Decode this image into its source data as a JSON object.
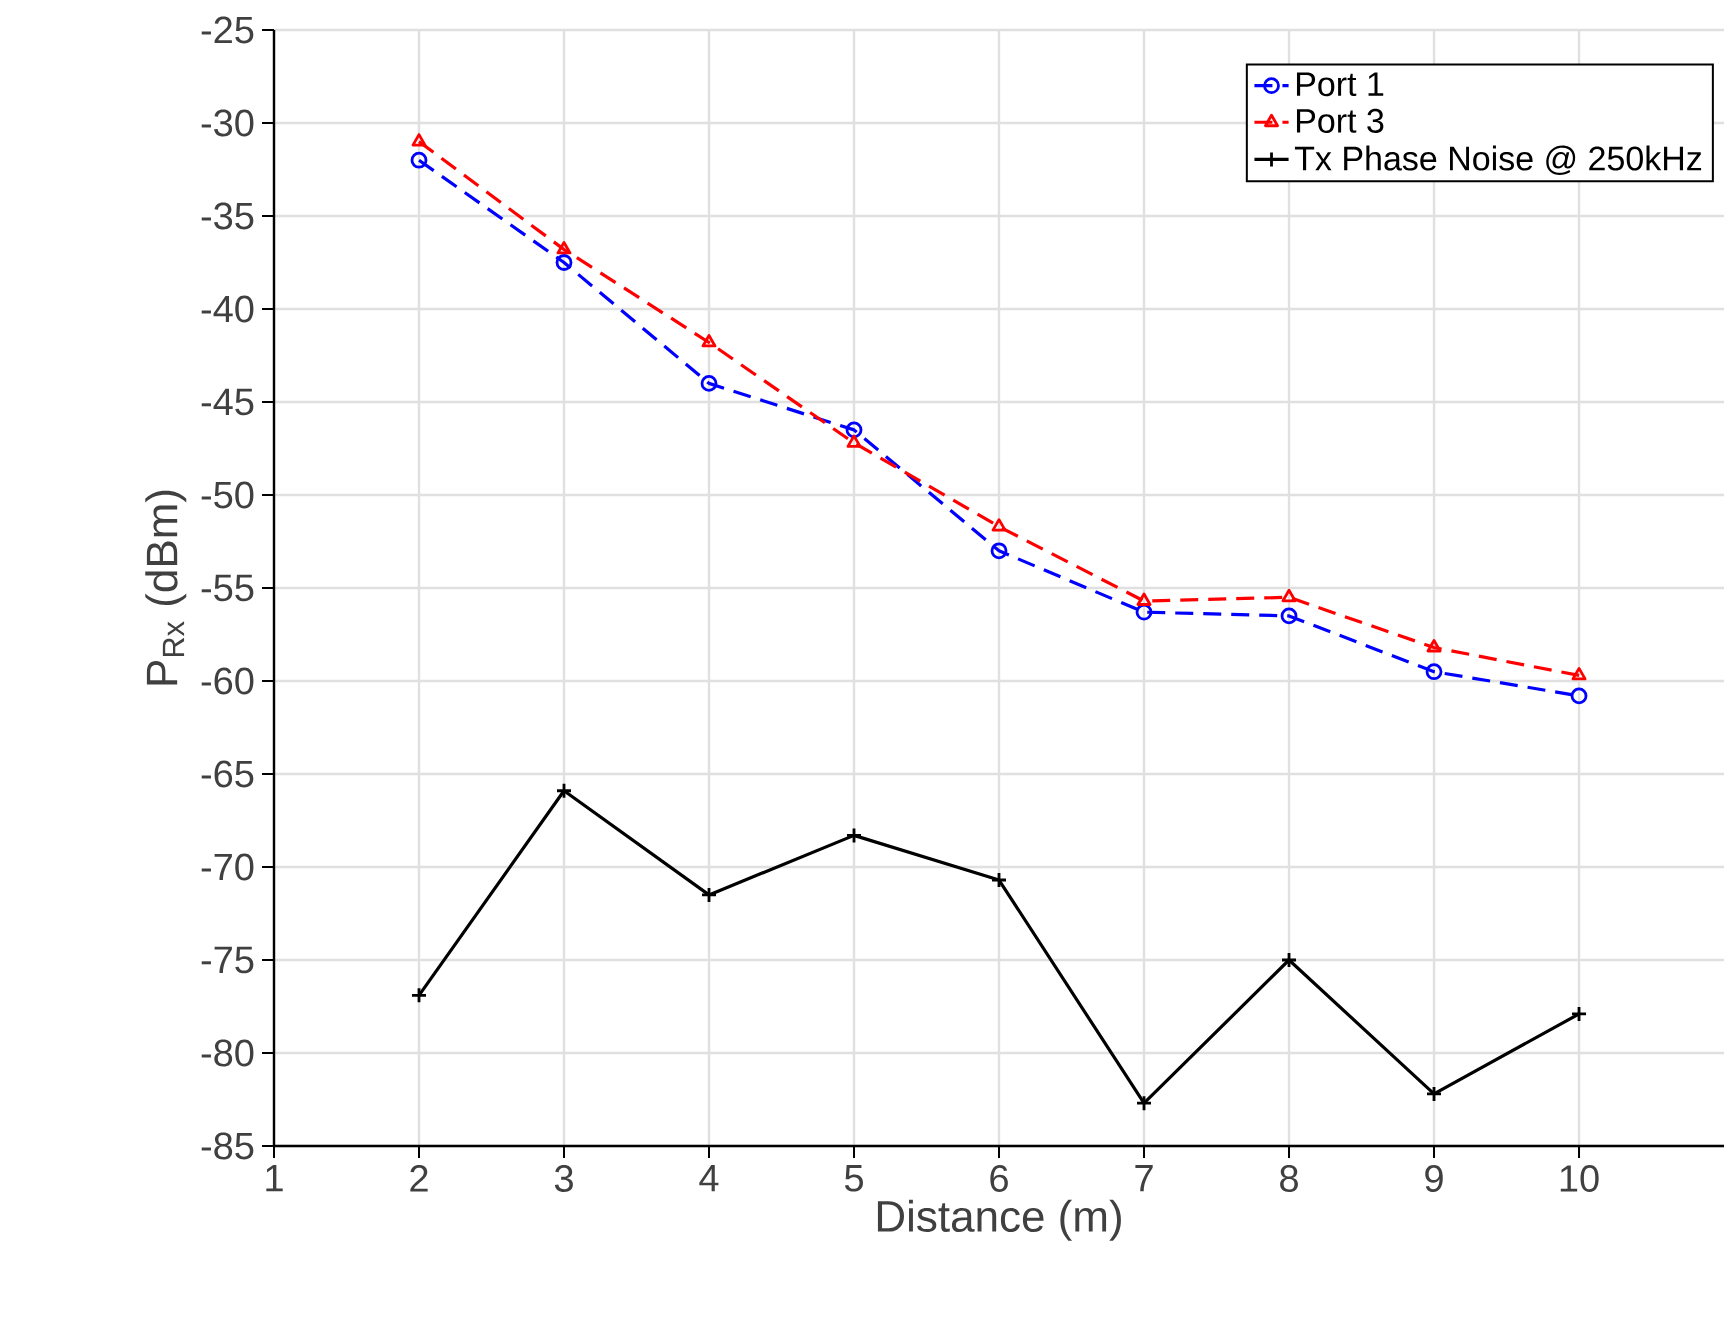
{
  "chart_data": {
    "type": "line",
    "xlabel": "Distance (m)",
    "ylabel": "P$_{Rx}$ (dBm)",
    "x": [
      2,
      3,
      4,
      5,
      6,
      7,
      8,
      9,
      10
    ],
    "series": [
      {
        "name": "Port 1",
        "color": "#0000ff",
        "marker": "circle",
        "line_style": "dashed",
        "values": [
          -32,
          -37.5,
          -44,
          -46.5,
          -53,
          -56.3,
          -56.5,
          -59.5,
          -60.8
        ]
      },
      {
        "name": "Port 3",
        "color": "#ff0000",
        "marker": "triangle",
        "line_style": "dashed",
        "values": [
          -31,
          -36.8,
          -41.8,
          -47.2,
          -51.7,
          -55.7,
          -55.5,
          -58.2,
          -59.7
        ]
      },
      {
        "name": "Tx Phase Noise @ 250kHz",
        "color": "#000000",
        "marker": "cross",
        "line_style": "solid",
        "values": [
          -76.9,
          -65.9,
          -71.5,
          -68.3,
          -70.7,
          -82.7,
          -75,
          -82.2,
          -77.9
        ]
      }
    ],
    "xlim": [
      1,
      11
    ],
    "ylim": [
      -85,
      -25
    ],
    "xticks": [
      1,
      2,
      3,
      4,
      5,
      6,
      7,
      8,
      9,
      10
    ],
    "yticks": [
      -85,
      -80,
      -75,
      -70,
      -65,
      -60,
      -55,
      -50,
      -45,
      -40,
      -35,
      -30,
      -25
    ],
    "grid": true,
    "legend": "top right"
  }
}
